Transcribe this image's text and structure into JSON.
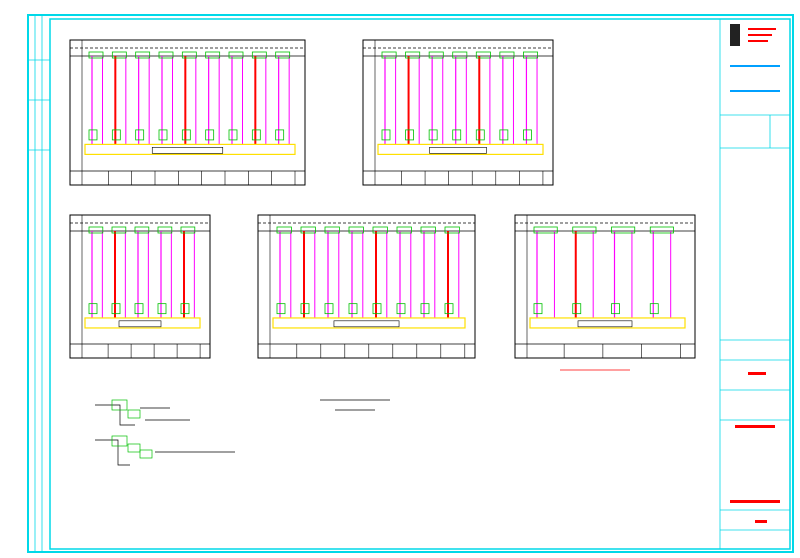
{
  "sheet": {}
}
